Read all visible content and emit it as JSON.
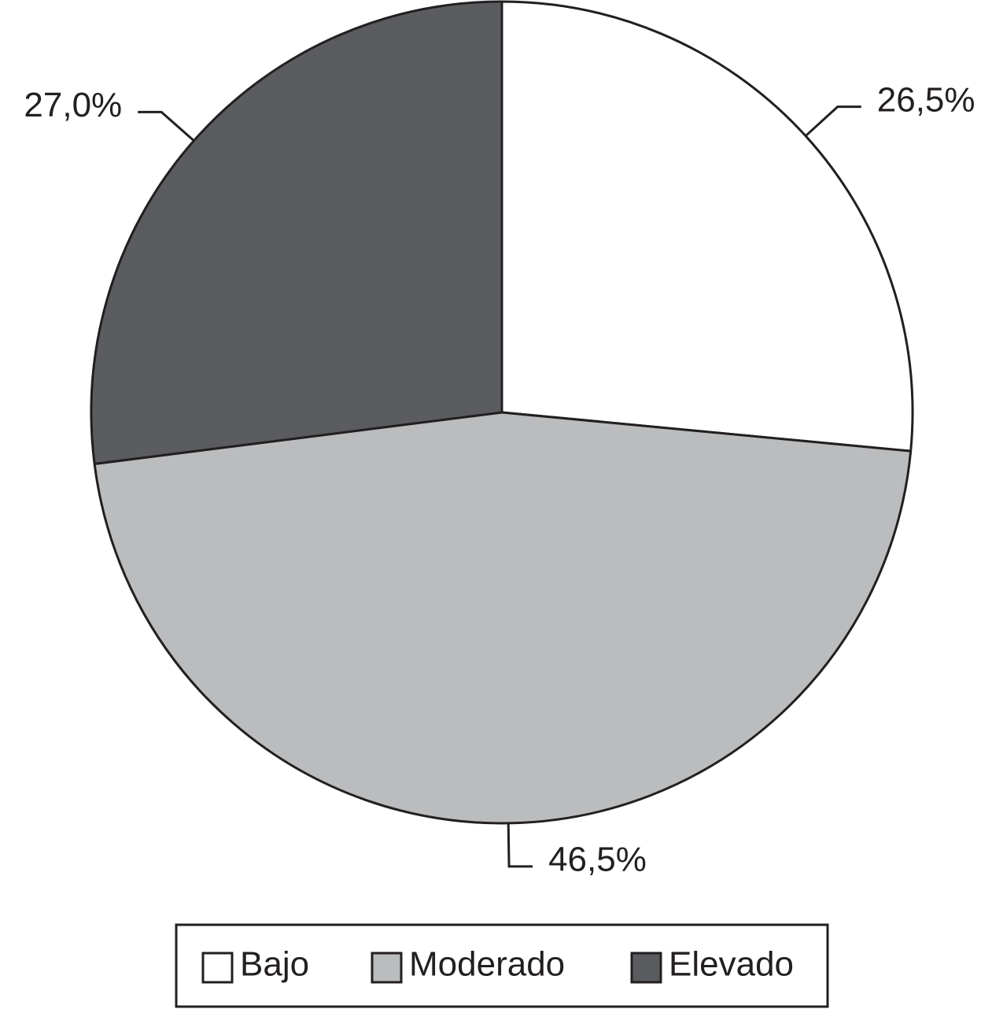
{
  "chart_data": {
    "type": "pie",
    "categories": [
      "Bajo",
      "Moderado",
      "Elevado"
    ],
    "values": [
      26.5,
      46.5,
      27.0
    ],
    "value_labels": [
      "26,5%",
      "46,5%",
      "27,0%"
    ],
    "colors": [
      "#ffffff",
      "#bbbcbe",
      "#5b5c5f"
    ]
  }
}
